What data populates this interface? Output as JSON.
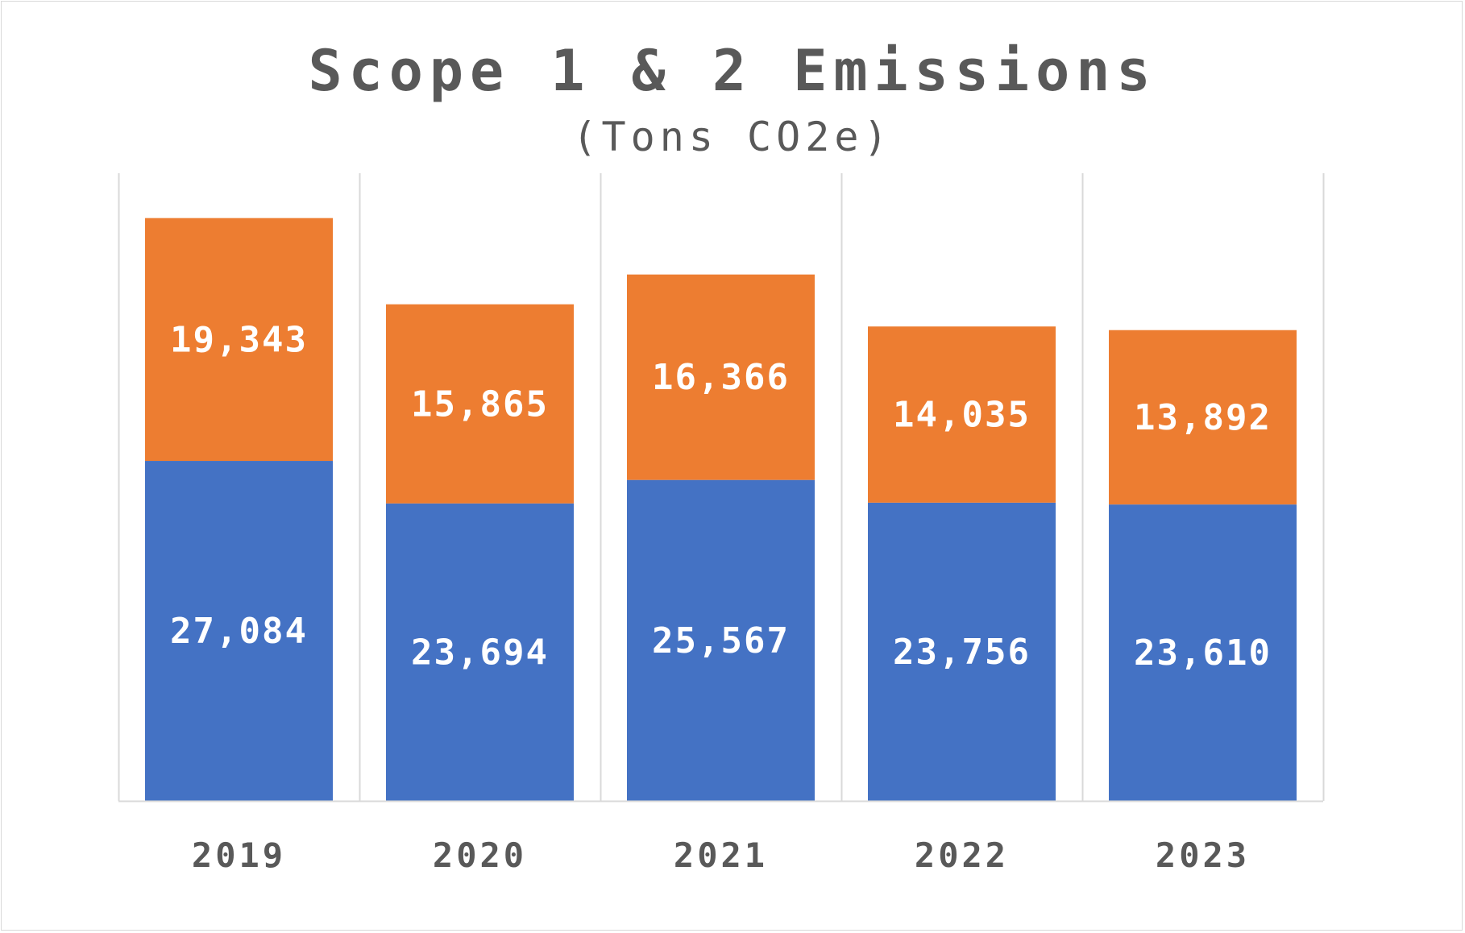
{
  "chart_data": {
    "type": "bar",
    "stacked": true,
    "title": "Scope 1 & 2 Emissions",
    "subtitle": "(Tons CO2e)",
    "xlabel": "",
    "ylabel": "",
    "categories": [
      "2019",
      "2020",
      "2021",
      "2022",
      "2023"
    ],
    "series": [
      {
        "color": "#4472c4",
        "values": [
          27084,
          23694,
          25567,
          23756,
          23610
        ],
        "labels": [
          "27,084",
          "23,694",
          "25,567",
          "23,756",
          "23,610"
        ]
      },
      {
        "color": "#ed7d31",
        "values": [
          19343,
          15865,
          16366,
          14035,
          13892
        ],
        "labels": [
          "19,343",
          "15,865",
          "16,366",
          "14,035",
          "13,892"
        ]
      }
    ],
    "ylim": [
      0,
      50000
    ],
    "grid": "vertical",
    "legend": "none"
  }
}
